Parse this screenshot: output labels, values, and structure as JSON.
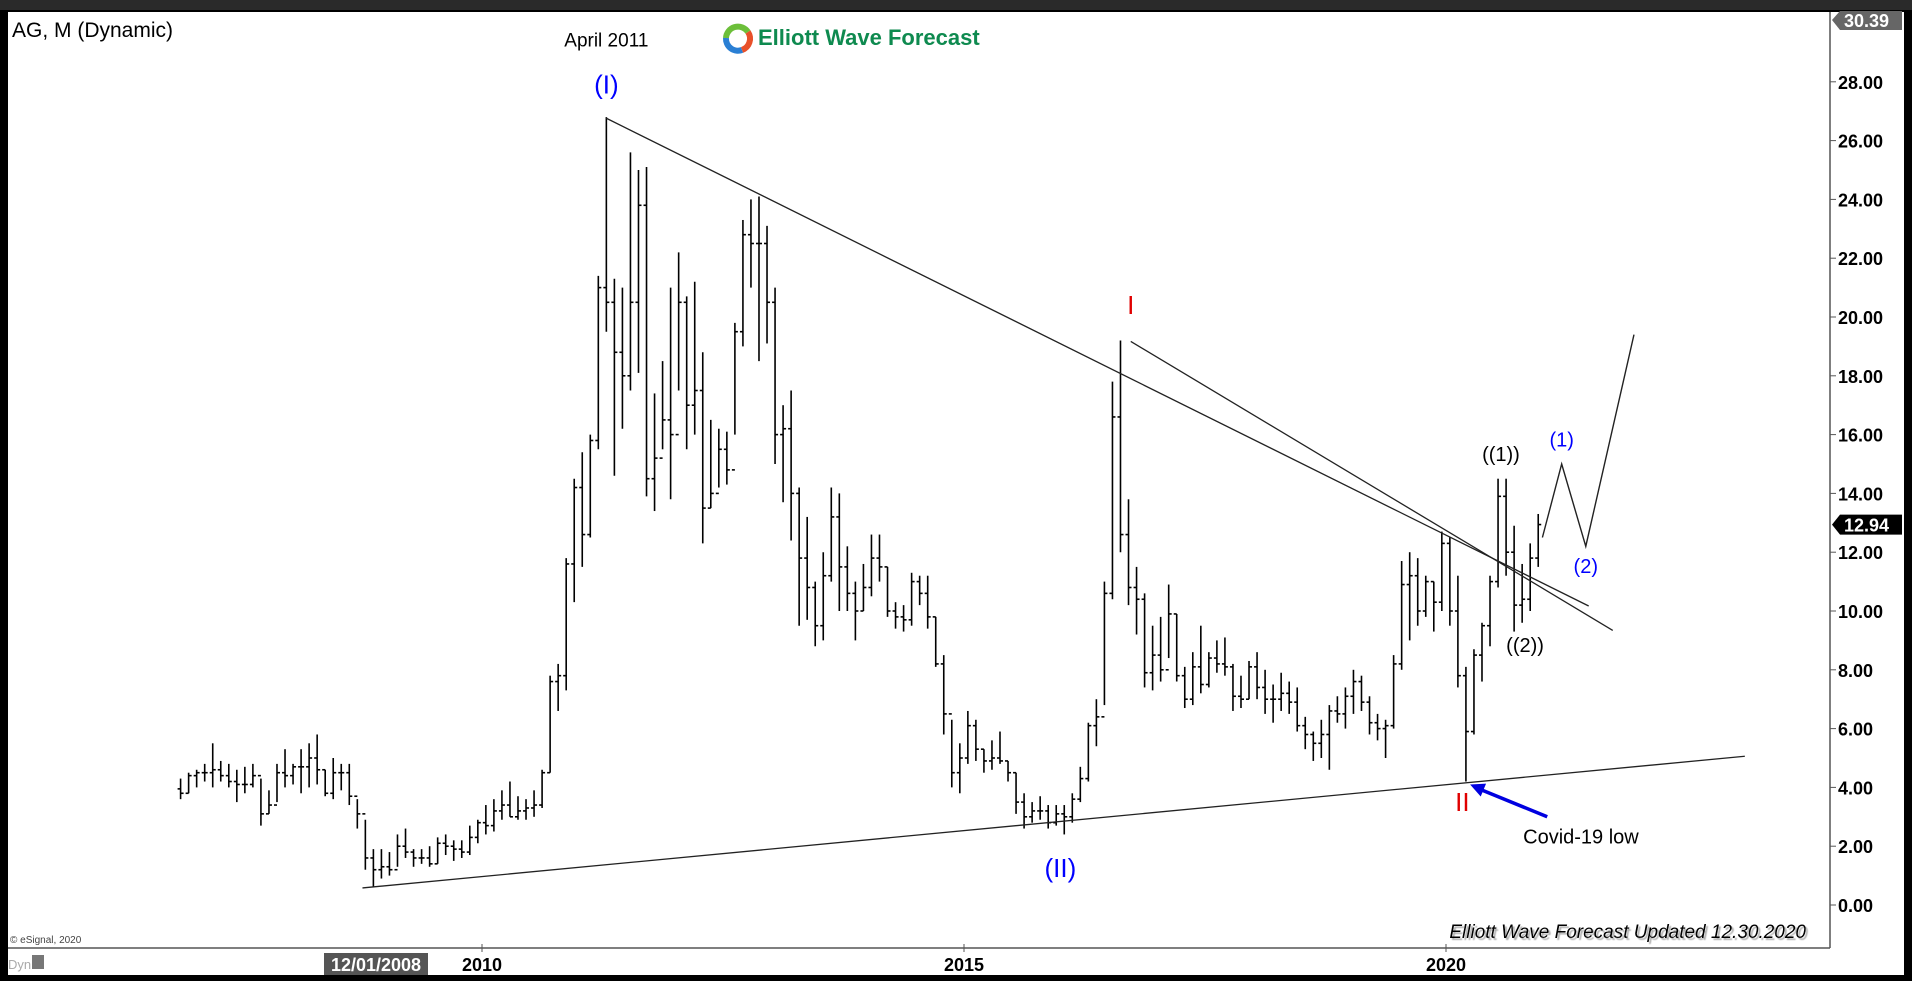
{
  "header": {
    "symbol_title": "AG, M (Dynamic)",
    "logo_text": "Elliott Wave Forecast"
  },
  "footer": {
    "updated_text": "Elliott Wave Forecast Updated 12.30.2020",
    "copyright": "© eSignal, 2020",
    "dyn_label": "Dyn",
    "cursor_date": "12/01/2008"
  },
  "colors": {
    "wave_blue": "#0000ff",
    "wave_red": "#e00000",
    "logo_green": "#0e8a4f",
    "arrow_blue": "#0000e0"
  },
  "chart_data": {
    "type": "ohlc-bar",
    "interval": "monthly",
    "x_start": "2006-11",
    "ylim": [
      -0.8,
      30.39
    ],
    "grid": false,
    "price_axis": [
      "28.00",
      "26.00",
      "24.00",
      "22.00",
      "20.00",
      "18.00",
      "16.00",
      "14.00",
      "12.00",
      "10.00",
      "8.00",
      "6.00",
      "4.00",
      "2.00",
      "0.00"
    ],
    "price_axis_values": [
      28,
      26,
      24,
      22,
      20,
      18,
      16,
      14,
      12,
      10,
      8,
      6,
      4,
      2,
      0
    ],
    "time_axis": [
      "2010",
      "2015",
      "2020"
    ],
    "time_axis_values": [
      2010,
      2015,
      2020
    ],
    "max_label": "30.39",
    "last_price_label": "12.94",
    "last_price": 12.94,
    "hlc": [
      [
        4.3,
        3.6,
        3.8
      ],
      [
        4.5,
        3.8,
        4.4
      ],
      [
        4.6,
        4.0,
        4.5
      ],
      [
        4.8,
        4.2,
        4.5
      ],
      [
        5.5,
        4.0,
        4.6
      ],
      [
        4.9,
        4.2,
        4.4
      ],
      [
        4.8,
        4.0,
        4.2
      ],
      [
        4.6,
        3.5,
        4.1
      ],
      [
        4.7,
        3.8,
        4.1
      ],
      [
        4.8,
        4.0,
        4.4
      ],
      [
        4.3,
        2.7,
        3.1
      ],
      [
        3.9,
        3.1,
        3.4
      ],
      [
        4.8,
        3.5,
        4.5
      ],
      [
        5.3,
        4.0,
        4.4
      ],
      [
        4.8,
        4.1,
        4.7
      ],
      [
        5.3,
        3.8,
        4.7
      ],
      [
        5.5,
        4.0,
        5.0
      ],
      [
        5.8,
        4.1,
        4.6
      ],
      [
        4.6,
        3.7,
        3.8
      ],
      [
        5.0,
        3.6,
        4.5
      ],
      [
        4.8,
        3.9,
        4.5
      ],
      [
        4.8,
        3.4,
        3.7
      ],
      [
        3.6,
        2.6,
        3.1
      ],
      [
        2.9,
        1.2,
        1.6
      ],
      [
        1.9,
        0.6,
        1.2
      ],
      [
        1.9,
        0.9,
        1.3
      ],
      [
        1.8,
        1.0,
        1.2
      ],
      [
        2.4,
        1.3,
        2.0
      ],
      [
        2.6,
        1.6,
        1.8
      ],
      [
        1.9,
        1.3,
        1.6
      ],
      [
        1.9,
        1.4,
        1.6
      ],
      [
        2.0,
        1.3,
        1.4
      ],
      [
        2.3,
        1.4,
        2.1
      ],
      [
        2.4,
        1.7,
        2.0
      ],
      [
        2.2,
        1.5,
        1.9
      ],
      [
        2.2,
        1.6,
        1.8
      ],
      [
        2.7,
        1.7,
        2.3
      ],
      [
        2.9,
        2.1,
        2.8
      ],
      [
        3.4,
        2.4,
        2.7
      ],
      [
        3.6,
        2.5,
        3.2
      ],
      [
        3.9,
        2.9,
        3.4
      ],
      [
        4.2,
        3.0,
        3.0
      ],
      [
        3.7,
        2.9,
        3.2
      ],
      [
        3.6,
        2.9,
        3.3
      ],
      [
        3.9,
        3.0,
        3.4
      ],
      [
        4.6,
        3.3,
        4.5
      ],
      [
        7.8,
        4.5,
        7.6
      ],
      [
        8.2,
        6.6,
        7.8
      ],
      [
        11.8,
        7.3,
        11.6
      ],
      [
        14.5,
        10.3,
        14.2
      ],
      [
        15.4,
        11.5,
        12.6
      ],
      [
        16.0,
        12.5,
        15.8
      ],
      [
        21.4,
        15.5,
        21.0
      ],
      [
        26.8,
        19.5,
        20.5
      ],
      [
        21.3,
        14.6,
        18.8
      ],
      [
        21.0,
        16.2,
        18.0
      ],
      [
        25.6,
        17.5,
        20.5
      ],
      [
        25.0,
        18.1,
        23.8
      ],
      [
        25.1,
        13.9,
        14.5
      ],
      [
        17.4,
        13.4,
        15.2
      ],
      [
        18.5,
        15.5,
        16.5
      ],
      [
        21.0,
        13.8,
        16.0
      ],
      [
        22.2,
        17.5,
        20.5
      ],
      [
        20.7,
        15.5,
        17.0
      ],
      [
        21.2,
        16.0,
        17.5
      ],
      [
        18.8,
        12.3,
        13.5
      ],
      [
        16.5,
        13.5,
        14.0
      ],
      [
        16.2,
        14.2,
        15.5
      ],
      [
        16.1,
        14.3,
        14.8
      ],
      [
        19.8,
        16.0,
        19.5
      ],
      [
        23.3,
        19.0,
        22.8
      ],
      [
        24.0,
        21.0,
        22.5
      ],
      [
        24.1,
        18.5,
        22.5
      ],
      [
        23.1,
        19.1,
        20.5
      ],
      [
        21.0,
        15.0,
        16.0
      ],
      [
        17.0,
        13.7,
        16.2
      ],
      [
        17.5,
        12.4,
        14.0
      ],
      [
        14.2,
        9.5,
        11.8
      ],
      [
        13.2,
        9.7,
        10.8
      ],
      [
        11.0,
        8.8,
        9.5
      ],
      [
        12.0,
        9.0,
        11.2
      ],
      [
        14.2,
        11.0,
        13.2
      ],
      [
        14.0,
        10.0,
        11.5
      ],
      [
        12.2,
        10.0,
        10.6
      ],
      [
        11.0,
        9.0,
        10.0
      ],
      [
        11.6,
        10.0,
        10.8
      ],
      [
        12.6,
        10.5,
        11.8
      ],
      [
        12.6,
        11.0,
        11.5
      ],
      [
        11.5,
        9.8,
        10.0
      ],
      [
        10.3,
        9.4,
        9.8
      ],
      [
        10.2,
        9.3,
        9.7
      ],
      [
        11.3,
        9.5,
        11.0
      ],
      [
        11.2,
        10.2,
        10.6
      ],
      [
        11.2,
        9.4,
        9.8
      ],
      [
        9.8,
        8.1,
        8.2
      ],
      [
        8.5,
        5.8,
        6.5
      ],
      [
        6.3,
        4.0,
        4.5
      ],
      [
        5.5,
        3.8,
        5.0
      ],
      [
        6.6,
        4.8,
        6.1
      ],
      [
        6.3,
        4.9,
        5.3
      ],
      [
        5.3,
        4.5,
        4.9
      ],
      [
        5.6,
        4.6,
        5.0
      ],
      [
        5.9,
        4.8,
        4.9
      ],
      [
        4.9,
        4.2,
        4.5
      ],
      [
        4.5,
        3.1,
        3.5
      ],
      [
        3.8,
        2.6,
        3.0
      ],
      [
        3.5,
        2.8,
        3.2
      ],
      [
        3.7,
        2.9,
        3.2
      ],
      [
        3.4,
        2.6,
        2.8
      ],
      [
        3.4,
        2.7,
        3.1
      ],
      [
        3.4,
        2.4,
        3.0
      ],
      [
        3.8,
        2.8,
        3.6
      ],
      [
        4.7,
        3.5,
        4.3
      ],
      [
        6.2,
        4.2,
        6.1
      ],
      [
        7.0,
        5.4,
        6.4
      ],
      [
        11.0,
        6.8,
        10.6
      ],
      [
        17.8,
        10.4,
        16.6
      ],
      [
        19.2,
        12.0,
        12.6
      ],
      [
        13.8,
        10.2,
        10.8
      ],
      [
        11.5,
        9.2,
        10.4
      ],
      [
        10.6,
        7.4,
        7.9
      ],
      [
        9.5,
        7.3,
        8.5
      ],
      [
        9.8,
        7.6,
        8.0
      ],
      [
        10.9,
        8.4,
        9.9
      ],
      [
        9.9,
        7.6,
        7.8
      ],
      [
        8.1,
        6.7,
        7.0
      ],
      [
        8.6,
        6.8,
        8.1
      ],
      [
        9.5,
        7.2,
        7.5
      ],
      [
        8.6,
        7.4,
        8.4
      ],
      [
        9.0,
        7.9,
        8.2
      ],
      [
        9.1,
        7.8,
        8.1
      ],
      [
        8.2,
        6.6,
        7.1
      ],
      [
        7.8,
        6.7,
        7.0
      ],
      [
        8.3,
        7.0,
        8.1
      ],
      [
        8.6,
        7.0,
        7.4
      ],
      [
        8.0,
        6.5,
        7.0
      ],
      [
        7.5,
        6.2,
        7.0
      ],
      [
        7.9,
        6.6,
        7.2
      ],
      [
        7.6,
        6.5,
        6.9
      ],
      [
        7.4,
        5.9,
        6.1
      ],
      [
        6.4,
        5.3,
        5.8
      ],
      [
        5.9,
        4.9,
        5.5
      ],
      [
        6.3,
        5.0,
        5.8
      ],
      [
        6.8,
        4.6,
        6.6
      ],
      [
        7.1,
        6.2,
        6.5
      ],
      [
        7.4,
        6.0,
        7.1
      ],
      [
        8.0,
        6.5,
        7.6
      ],
      [
        7.8,
        6.6,
        6.9
      ],
      [
        7.1,
        5.8,
        6.2
      ],
      [
        6.5,
        5.6,
        6.0
      ],
      [
        6.3,
        5.0,
        6.1
      ],
      [
        8.5,
        6.0,
        8.2
      ],
      [
        11.7,
        8.0,
        10.9
      ],
      [
        12.0,
        9.0,
        11.2
      ],
      [
        11.8,
        9.5,
        10.0
      ],
      [
        11.2,
        9.8,
        11.0
      ],
      [
        11.0,
        9.3,
        10.3
      ],
      [
        12.7,
        10.0,
        12.3
      ],
      [
        12.5,
        9.5,
        10.0
      ],
      [
        11.2,
        7.4,
        7.8
      ],
      [
        8.1,
        4.2,
        5.9
      ],
      [
        8.7,
        5.8,
        8.5
      ],
      [
        9.6,
        7.6,
        9.5
      ],
      [
        11.2,
        8.8,
        11.0
      ],
      [
        14.5,
        10.8,
        13.9
      ],
      [
        14.5,
        11.2,
        12.0
      ],
      [
        12.9,
        9.3,
        10.2
      ],
      [
        11.6,
        9.6,
        10.4
      ],
      [
        12.3,
        10.0,
        11.8
      ],
      [
        13.3,
        11.5,
        12.94
      ]
    ],
    "trendlines": [
      {
        "from": [
          2011.29,
          26.76
        ],
        "to": [
          2021.48,
          10.17
        ]
      },
      {
        "from": [
          2016.73,
          19.17
        ],
        "to": [
          2021.73,
          9.34
        ]
      },
      {
        "from": [
          2008.76,
          0.58
        ],
        "to": [
          2023.1,
          5.06
        ]
      }
    ],
    "projection": [
      [
        2021.0,
        12.5
      ],
      [
        2021.2,
        15.0
      ],
      [
        2021.45,
        12.2
      ],
      [
        2021.95,
        19.4
      ]
    ],
    "annotations": [
      {
        "text": "April 2011",
        "t": 2011.29,
        "v": 29.2,
        "color": "#000000",
        "size": 19
      },
      {
        "text": "(I)",
        "t": 2011.29,
        "v": 27.6,
        "color": "#0000ff",
        "size": 26
      },
      {
        "text": "I",
        "t": 2016.73,
        "v": 20.1,
        "color": "#e00000",
        "size": 26
      },
      {
        "text": "(II)",
        "t": 2016.0,
        "v": 0.95,
        "color": "#0000ff",
        "size": 26
      },
      {
        "text": "II",
        "t": 2020.17,
        "v": 3.2,
        "color": "#e00000",
        "size": 26
      },
      {
        "text": "((1))",
        "t": 2020.57,
        "v": 15.1,
        "color": "#000000",
        "size": 20
      },
      {
        "text": "((2))",
        "t": 2020.82,
        "v": 8.6,
        "color": "#000000",
        "size": 20
      },
      {
        "text": "(1)",
        "t": 2021.2,
        "v": 15.6,
        "color": "#0000ff",
        "size": 20
      },
      {
        "text": "(2)",
        "t": 2021.45,
        "v": 11.3,
        "color": "#0000ff",
        "size": 20
      },
      {
        "text": "Covid-19 low",
        "t": 2021.4,
        "v": 2.1,
        "color": "#000000",
        "size": 20
      }
    ],
    "arrow": {
      "from": [
        2021.05,
        3.0
      ],
      "to": [
        2020.25,
        4.1
      ]
    }
  }
}
